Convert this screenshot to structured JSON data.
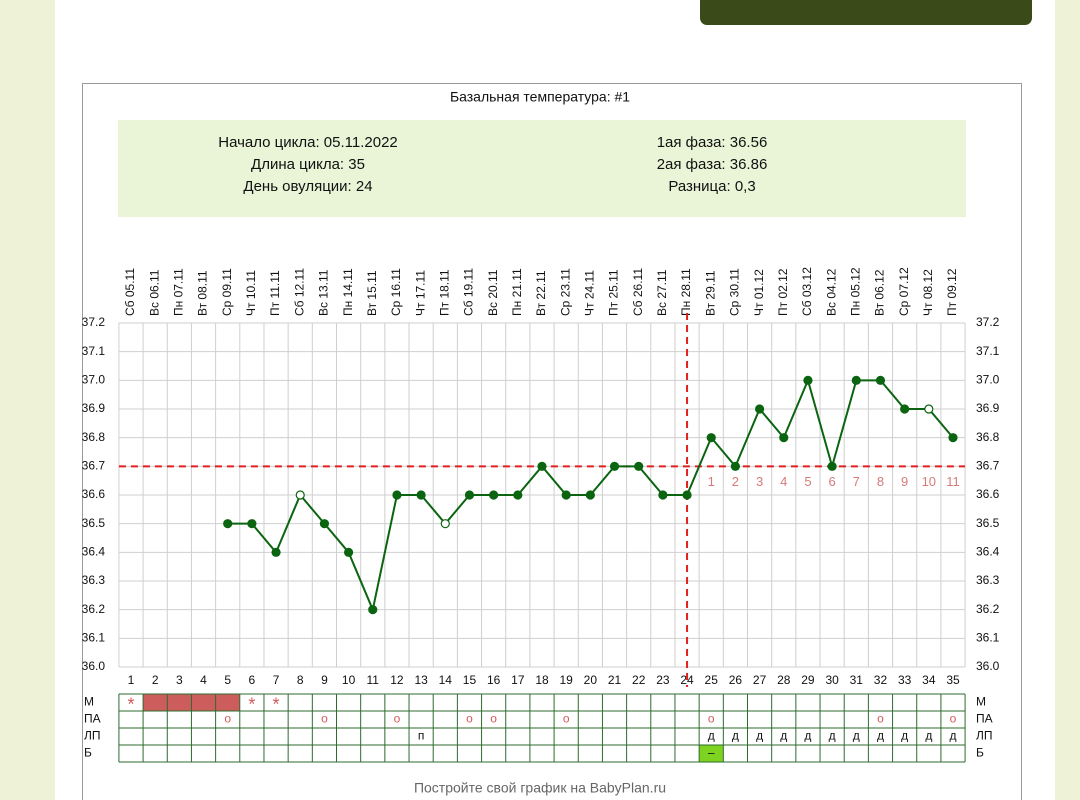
{
  "chart_data": {
    "type": "line",
    "title": "Базальная температура: #1",
    "info": {
      "left": [
        "Начало цикла: 05.11.2022",
        "Длина цикла: 35",
        "День овуляции: 24"
      ],
      "right": [
        "1ая фаза: 36.56",
        "2ая фаза: 36.86",
        "Разница: 0,3"
      ]
    },
    "categories": [
      1,
      2,
      3,
      4,
      5,
      6,
      7,
      8,
      9,
      10,
      11,
      12,
      13,
      14,
      15,
      16,
      17,
      18,
      19,
      20,
      21,
      22,
      23,
      24,
      25,
      26,
      27,
      28,
      29,
      30,
      31,
      32,
      33,
      34,
      35
    ],
    "dates": [
      "Сб 05.11",
      "Вс 06.11",
      "Пн 07.11",
      "Вт 08.11",
      "Ср 09.11",
      "Чт 10.11",
      "Пт 11.11",
      "Сб 12.11",
      "Вс 13.11",
      "Пн 14.11",
      "Вт 15.11",
      "Ср 16.11",
      "Чт 17.11",
      "Пт 18.11",
      "Сб 19.11",
      "Вс 20.11",
      "Пн 21.11",
      "Вт 22.11",
      "Ср 23.11",
      "Чт 24.11",
      "Пт 25.11",
      "Сб 26.11",
      "Вс 27.11",
      "Пн 28.11",
      "Вт 29.11",
      "Ср 30.11",
      "Чт 01.12",
      "Пт 02.12",
      "Сб 03.12",
      "Вс 04.12",
      "Пн 05.12",
      "Вт 06.12",
      "Ср 07.12",
      "Чт 08.12",
      "Пт 09.12"
    ],
    "values": [
      null,
      null,
      null,
      null,
      36.5,
      36.5,
      36.4,
      36.6,
      36.5,
      36.4,
      36.2,
      36.6,
      36.6,
      36.5,
      36.6,
      36.6,
      36.6,
      36.7,
      36.6,
      36.6,
      36.7,
      36.7,
      36.6,
      36.6,
      36.8,
      36.7,
      36.9,
      36.8,
      37.0,
      36.7,
      37.0,
      37.0,
      36.9,
      36.9,
      36.8
    ],
    "color": "#0b6410",
    "hollow_points": [
      8,
      14,
      34
    ],
    "coverline": 36.7,
    "ovulation_day": 24,
    "marker_line_color": "#e02020",
    "post_ovulation_days": [
      1,
      2,
      3,
      4,
      5,
      6,
      7,
      8,
      9,
      10,
      11
    ],
    "post_ovulation_color": "#d77a7a",
    "ylim": [
      36.0,
      37.2
    ],
    "yticks": [
      {
        "value": 36.0,
        "label": "36.0"
      },
      36.1,
      36.2,
      36.3,
      36.4,
      36.5,
      36.6,
      36.7,
      36.8,
      36.9,
      {
        "value": 37.0,
        "label": "37.0"
      },
      37.1,
      37.2
    ],
    "grid": true,
    "table": {
      "rows": [
        {
          "label": "М",
          "fill_days": [
            2,
            3,
            4,
            5
          ],
          "fill_color": "#cd5c5c",
          "cells": [
            "*",
            null,
            null,
            null,
            null,
            "*",
            "*",
            null,
            null,
            null,
            null,
            null,
            null,
            null,
            null,
            null,
            null,
            null,
            null,
            null,
            null,
            null,
            null,
            null,
            null,
            null,
            null,
            null,
            null,
            null,
            null,
            null,
            null,
            null,
            null
          ]
        },
        {
          "label": "ПА",
          "cells": [
            null,
            null,
            null,
            null,
            "о",
            null,
            null,
            null,
            "о",
            null,
            null,
            "о",
            null,
            null,
            "о",
            "о",
            null,
            null,
            "о",
            null,
            null,
            null,
            null,
            null,
            "о",
            null,
            null,
            null,
            null,
            null,
            null,
            "о",
            null,
            null,
            "о"
          ]
        },
        {
          "label": "ЛП",
          "cells": [
            null,
            null,
            null,
            null,
            null,
            null,
            null,
            null,
            null,
            null,
            null,
            null,
            "п",
            null,
            null,
            null,
            null,
            null,
            null,
            null,
            null,
            null,
            null,
            null,
            "д",
            "д",
            "д",
            "д",
            "д",
            "д",
            "д",
            "д",
            "д",
            "д",
            "д"
          ]
        },
        {
          "label": "Б",
          "fill_days": [
            25
          ],
          "fill_color": "#7ed321",
          "cells": [
            null,
            null,
            null,
            null,
            null,
            null,
            null,
            null,
            null,
            null,
            null,
            null,
            null,
            null,
            null,
            null,
            null,
            null,
            null,
            null,
            null,
            null,
            null,
            null,
            "–",
            null,
            null,
            null,
            null,
            null,
            null,
            null,
            null,
            null,
            null
          ]
        }
      ]
    },
    "footer": "Постройте свой график на BabyPlan.ru"
  }
}
